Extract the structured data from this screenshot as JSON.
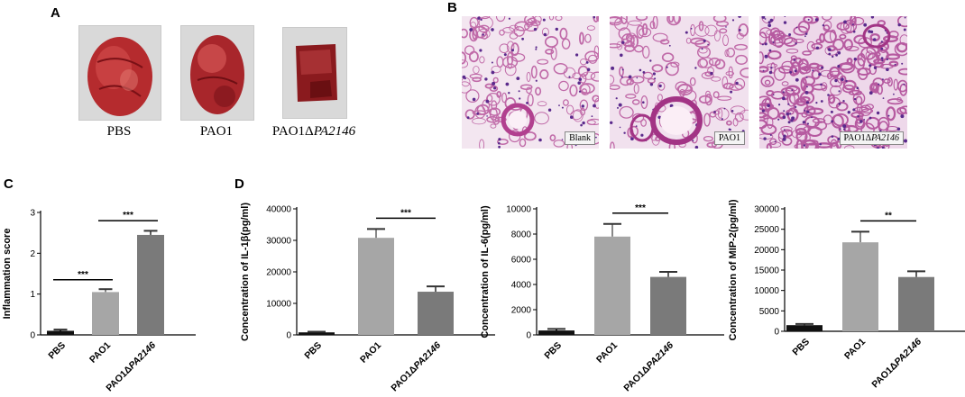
{
  "panels": {
    "A": {
      "letter": "A",
      "labels": [
        {
          "prefix": "PBS",
          "italic": ""
        },
        {
          "prefix": "PAO1",
          "italic": ""
        },
        {
          "prefix": "PAO1Δ",
          "italic": "PA2146"
        }
      ]
    },
    "B": {
      "letter": "B",
      "tags": [
        {
          "prefix": "Blank",
          "italic": ""
        },
        {
          "prefix": "PAO1",
          "italic": ""
        },
        {
          "prefix": "PAO1Δ",
          "italic": "PA2146"
        }
      ]
    },
    "C": {
      "letter": "C"
    },
    "D": {
      "letter": "D"
    }
  },
  "chart_data": [
    {
      "panel": "C",
      "type": "bar",
      "categories": [
        "PBS",
        "PAO1",
        "PAO1ΔPA2146"
      ],
      "values": [
        0.1,
        1.05,
        2.45
      ],
      "errors": [
        0.03,
        0.07,
        0.1
      ],
      "bar_colors": [
        "#111111",
        "#a6a6a6",
        "#7a7a7a"
      ],
      "ylabel": "Inflammation score",
      "ylim": [
        0,
        3
      ],
      "yticks": [
        "0",
        "1",
        "2",
        "3"
      ],
      "significance": [
        {
          "from": 0,
          "to": 1,
          "label": "***"
        },
        {
          "from": 1,
          "to": 2,
          "label": "***"
        }
      ]
    },
    {
      "panel": "D",
      "type": "bar",
      "categories": [
        "PBS",
        "PAO1",
        "PAO1ΔPA2146"
      ],
      "values": [
        800,
        30800,
        13700
      ],
      "errors": [
        200,
        2800,
        1700
      ],
      "bar_colors": [
        "#111111",
        "#a6a6a6",
        "#7a7a7a"
      ],
      "ylabel": "Concentration of IL-1β(pg/ml)",
      "ylim": [
        0,
        40000
      ],
      "yticks": [
        "0",
        "10000",
        "20000",
        "30000",
        "40000"
      ],
      "significance": [
        {
          "from": 1,
          "to": 2,
          "label": "***"
        }
      ]
    },
    {
      "panel": "D",
      "type": "bar",
      "categories": [
        "PBS",
        "PAO1",
        "PAO1ΔPA2146"
      ],
      "values": [
        350,
        7800,
        4600
      ],
      "errors": [
        120,
        1000,
        400
      ],
      "bar_colors": [
        "#111111",
        "#a6a6a6",
        "#7a7a7a"
      ],
      "ylabel": "Concentration of IL-6(pg/ml)",
      "ylim": [
        0,
        10000
      ],
      "yticks": [
        "0",
        "2000",
        "4000",
        "6000",
        "8000",
        "10000"
      ],
      "significance": [
        {
          "from": 1,
          "to": 2,
          "label": "***"
        }
      ]
    },
    {
      "panel": "D",
      "type": "bar",
      "categories": [
        "PBS",
        "PAO1",
        "PAO1ΔPA2146"
      ],
      "values": [
        1500,
        21800,
        13300
      ],
      "errors": [
        300,
        2600,
        1400
      ],
      "bar_colors": [
        "#111111",
        "#a6a6a6",
        "#7a7a7a"
      ],
      "ylabel": "Concentration of MIP-2(pg/ml)",
      "ylim": [
        0,
        30000
      ],
      "yticks": [
        "0",
        "5000",
        "10000",
        "15000",
        "20000",
        "25000",
        "30000"
      ],
      "significance": [
        {
          "from": 1,
          "to": 2,
          "label": "**"
        }
      ]
    }
  ]
}
